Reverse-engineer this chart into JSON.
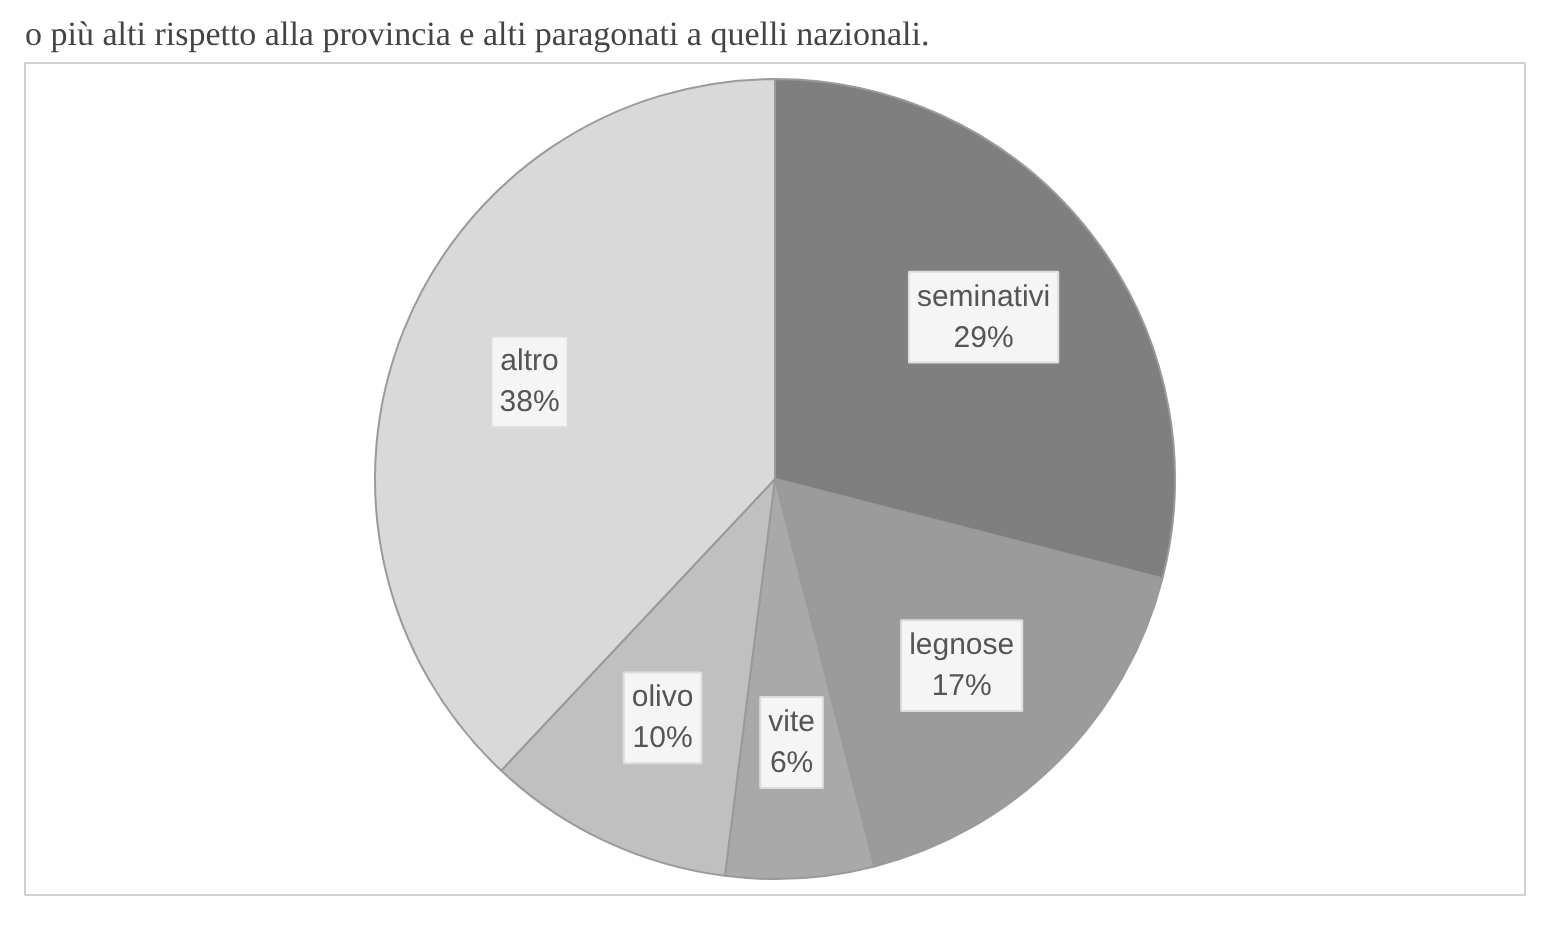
{
  "chart_data": {
    "type": "pie",
    "annotations": [
      "o più alti rispetto alla provincia e alti paragonati a quelli nazionali."
    ],
    "categories": [
      "seminativi",
      "legnose",
      "vite",
      "olivo",
      "altro"
    ],
    "values": [
      29,
      17,
      6,
      10,
      38
    ],
    "value_labels": [
      "29%",
      "17%",
      "6%",
      "10%",
      "38%"
    ],
    "colors": [
      "#7f7f7f",
      "#9b9b9b",
      "#a9a9a9",
      "#c0c0c0",
      "#d9d9d9"
    ],
    "legend": false
  }
}
